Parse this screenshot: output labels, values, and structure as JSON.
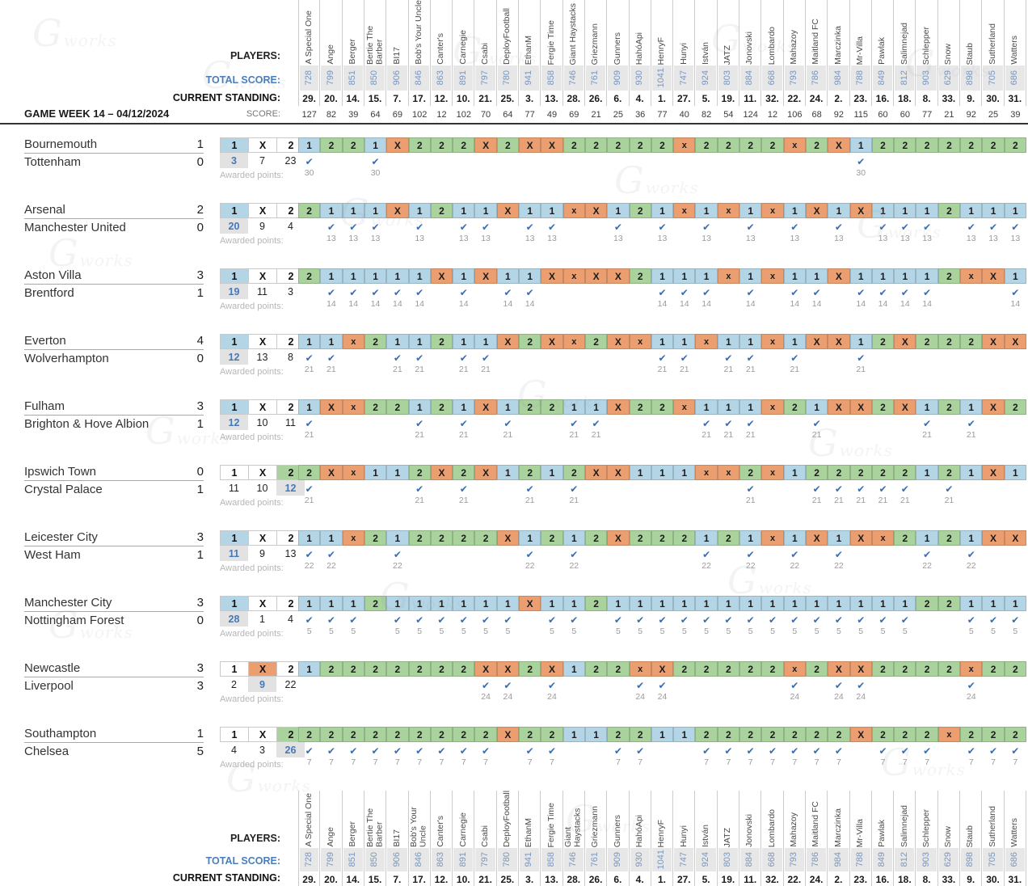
{
  "header": {
    "players_label": "PLAYERS:",
    "total_score_label": "TOTAL SCORE:",
    "standing_label": "CURRENT STANDING:",
    "gameweek_label": "GAME WEEK 14 – 04/12/2024",
    "score_label": "SCORE:",
    "awarded_label": "Awarded points:",
    "odds_header": [
      "1",
      "X",
      "2"
    ]
  },
  "icons": {
    "correct_check": "✔"
  },
  "watermark": {
    "initial": "G",
    "text": "works"
  },
  "colors": {
    "home_win": "#b3d5e5",
    "draw": "#eb9f70",
    "away_win": "#a9d29d",
    "win_value_text": "#4678b8",
    "check": "#3a6cb0"
  },
  "players": [
    {
      "name": "A Special One",
      "total": "728",
      "standing": "29.",
      "week_score": "127"
    },
    {
      "name": "Ange",
      "total": "799",
      "standing": "20.",
      "week_score": "82"
    },
    {
      "name": "Berger",
      "total": "851",
      "standing": "14.",
      "week_score": "39"
    },
    {
      "name": "Bertie The Barber",
      "total": "850",
      "standing": "15.",
      "week_score": "64"
    },
    {
      "name": "BI17",
      "total": "906",
      "standing": "7.",
      "week_score": "69"
    },
    {
      "name": "Bob's Your Uncle",
      "total": "846",
      "standing": "17.",
      "week_score": "102"
    },
    {
      "name": "Canter's",
      "total": "863",
      "standing": "12.",
      "week_score": "12"
    },
    {
      "name": "Carnegie",
      "total": "891",
      "standing": "10.",
      "week_score": "102"
    },
    {
      "name": "Csabi",
      "total": "797",
      "standing": "21.",
      "week_score": "70"
    },
    {
      "name": "DeployFootball",
      "total": "780",
      "standing": "25.",
      "week_score": "64"
    },
    {
      "name": "EthanM",
      "total": "941",
      "standing": "3.",
      "week_score": "77"
    },
    {
      "name": "Fergie Time",
      "total": "858",
      "standing": "13.",
      "week_score": "49"
    },
    {
      "name": "Giant Haystacks",
      "total": "746",
      "standing": "28.",
      "week_score": "69"
    },
    {
      "name": "Griezmann",
      "total": "761",
      "standing": "26.",
      "week_score": "21"
    },
    {
      "name": "Gunners",
      "total": "909",
      "standing": "6.",
      "week_score": "25"
    },
    {
      "name": "HahóApi",
      "total": "930",
      "standing": "4.",
      "week_score": "36"
    },
    {
      "name": "HenryF",
      "total": "1041",
      "standing": "1.",
      "week_score": "77"
    },
    {
      "name": "Hunyi",
      "total": "747",
      "standing": "27.",
      "week_score": "40"
    },
    {
      "name": "István",
      "total": "924",
      "standing": "5.",
      "week_score": "82"
    },
    {
      "name": "JATZ",
      "total": "803",
      "standing": "19.",
      "week_score": "54"
    },
    {
      "name": "Jonovski",
      "total": "884",
      "standing": "11.",
      "week_score": "124"
    },
    {
      "name": "Lombardo",
      "total": "668",
      "standing": "32.",
      "week_score": "12"
    },
    {
      "name": "Mahazoy",
      "total": "793",
      "standing": "22.",
      "week_score": "106"
    },
    {
      "name": "Maitland FC",
      "total": "786",
      "standing": "24.",
      "week_score": "68"
    },
    {
      "name": "Marczinka",
      "total": "984",
      "standing": "2.",
      "week_score": "92"
    },
    {
      "name": "Mr-Villa",
      "total": "788",
      "standing": "23.",
      "week_score": "115"
    },
    {
      "name": "Pawlak",
      "total": "849",
      "standing": "16.",
      "week_score": "60"
    },
    {
      "name": "Salimnejad",
      "total": "812",
      "standing": "18.",
      "week_score": "60"
    },
    {
      "name": "Schlepper",
      "total": "903",
      "standing": "8.",
      "week_score": "77"
    },
    {
      "name": "Snow",
      "total": "629",
      "standing": "33.",
      "week_score": "21"
    },
    {
      "name": "Staub",
      "total": "898",
      "standing": "9.",
      "week_score": "92"
    },
    {
      "name": "Sutherland",
      "total": "705",
      "standing": "30.",
      "week_score": "25"
    },
    {
      "name": "Watters",
      "total": "686",
      "standing": "31.",
      "week_score": "39"
    }
  ],
  "matches": [
    {
      "home": "Bournemouth",
      "home_score": "1",
      "away": "Tottenham",
      "away_score": "0",
      "result": "1",
      "votes": [
        "3",
        "7",
        "23"
      ],
      "awarded_points": "30",
      "predictions": [
        "1",
        "2",
        "2",
        "1",
        "X",
        "2",
        "2",
        "2",
        "X",
        "2",
        "X",
        "X",
        "2",
        "2",
        "2",
        "2",
        "2",
        "x",
        "2",
        "2",
        "2",
        "2",
        "x",
        "2",
        "X",
        "1",
        "2",
        "2",
        "2",
        "2",
        "2",
        "2",
        "2"
      ]
    },
    {
      "home": "Arsenal",
      "home_score": "2",
      "away": "Manchester United",
      "away_score": "0",
      "result": "1",
      "votes": [
        "20",
        "9",
        "4"
      ],
      "awarded_points": "13",
      "predictions": [
        "2",
        "1",
        "1",
        "1",
        "X",
        "1",
        "2",
        "1",
        "1",
        "X",
        "1",
        "1",
        "x",
        "X",
        "1",
        "2",
        "1",
        "x",
        "1",
        "x",
        "1",
        "x",
        "1",
        "X",
        "1",
        "X",
        "1",
        "1",
        "1",
        "2",
        "1",
        "1",
        "1"
      ]
    },
    {
      "home": "Aston Villa",
      "home_score": "3",
      "away": "Brentford",
      "away_score": "1",
      "result": "1",
      "votes": [
        "19",
        "11",
        "3"
      ],
      "awarded_points": "14",
      "predictions": [
        "2",
        "1",
        "1",
        "1",
        "1",
        "1",
        "X",
        "1",
        "X",
        "1",
        "1",
        "X",
        "x",
        "X",
        "X",
        "2",
        "1",
        "1",
        "1",
        "x",
        "1",
        "x",
        "1",
        "1",
        "X",
        "1",
        "1",
        "1",
        "1",
        "2",
        "x",
        "X",
        "1"
      ]
    },
    {
      "home": "Everton",
      "home_score": "4",
      "away": "Wolverhampton",
      "away_score": "0",
      "result": "1",
      "votes": [
        "12",
        "13",
        "8"
      ],
      "awarded_points": "21",
      "predictions": [
        "1",
        "1",
        "x",
        "2",
        "1",
        "1",
        "2",
        "1",
        "1",
        "X",
        "2",
        "X",
        "x",
        "2",
        "X",
        "x",
        "1",
        "1",
        "x",
        "1",
        "1",
        "x",
        "1",
        "X",
        "X",
        "1",
        "2",
        "X",
        "2",
        "2",
        "2",
        "X",
        "X"
      ]
    },
    {
      "home": "Fulham",
      "home_score": "3",
      "away": "Brighton & Hove Albion",
      "away_score": "1",
      "result": "1",
      "votes": [
        "12",
        "10",
        "11"
      ],
      "awarded_points": "21",
      "predictions": [
        "1",
        "X",
        "x",
        "2",
        "2",
        "1",
        "2",
        "1",
        "X",
        "1",
        "2",
        "2",
        "1",
        "1",
        "X",
        "2",
        "2",
        "x",
        "1",
        "1",
        "1",
        "x",
        "2",
        "1",
        "X",
        "X",
        "2",
        "X",
        "1",
        "2",
        "1",
        "X",
        "2"
      ]
    },
    {
      "home": "Ipswich Town",
      "home_score": "0",
      "away": "Crystal Palace",
      "away_score": "1",
      "result": "2",
      "votes": [
        "11",
        "10",
        "12"
      ],
      "awarded_points": "21",
      "predictions": [
        "2",
        "X",
        "x",
        "1",
        "1",
        "2",
        "X",
        "2",
        "X",
        "1",
        "2",
        "1",
        "2",
        "X",
        "X",
        "1",
        "1",
        "1",
        "x",
        "x",
        "2",
        "x",
        "1",
        "2",
        "2",
        "2",
        "2",
        "2",
        "1",
        "2",
        "1",
        "X",
        "1"
      ]
    },
    {
      "home": "Leicester City",
      "home_score": "3",
      "away": "West Ham",
      "away_score": "1",
      "result": "1",
      "votes": [
        "11",
        "9",
        "13"
      ],
      "awarded_points": "22",
      "predictions": [
        "1",
        "1",
        "x",
        "2",
        "1",
        "2",
        "2",
        "2",
        "2",
        "X",
        "1",
        "2",
        "1",
        "2",
        "X",
        "2",
        "2",
        "2",
        "1",
        "2",
        "1",
        "x",
        "1",
        "X",
        "1",
        "X",
        "x",
        "2",
        "1",
        "2",
        "1",
        "X",
        "X"
      ]
    },
    {
      "home": "Manchester City",
      "home_score": "3",
      "away": "Nottingham Forest",
      "away_score": "0",
      "result": "1",
      "votes": [
        "28",
        "1",
        "4"
      ],
      "awarded_points": "5",
      "predictions": [
        "1",
        "1",
        "1",
        "2",
        "1",
        "1",
        "1",
        "1",
        "1",
        "1",
        "X",
        "1",
        "1",
        "2",
        "1",
        "1",
        "1",
        "1",
        "1",
        "1",
        "1",
        "1",
        "1",
        "1",
        "1",
        "1",
        "1",
        "1",
        "2",
        "2",
        "1",
        "1",
        "1"
      ]
    },
    {
      "home": "Newcastle",
      "home_score": "3",
      "away": "Liverpool",
      "away_score": "3",
      "result": "X",
      "votes": [
        "2",
        "9",
        "22"
      ],
      "awarded_points": "24",
      "predictions": [
        "1",
        "2",
        "2",
        "2",
        "2",
        "2",
        "2",
        "2",
        "X",
        "X",
        "2",
        "X",
        "1",
        "2",
        "2",
        "x",
        "X",
        "2",
        "2",
        "2",
        "2",
        "2",
        "x",
        "2",
        "X",
        "X",
        "2",
        "2",
        "2",
        "2",
        "x",
        "2",
        "2"
      ]
    },
    {
      "home": "Southampton",
      "home_score": "1",
      "away": "Chelsea",
      "away_score": "5",
      "result": "2",
      "votes": [
        "4",
        "3",
        "26"
      ],
      "awarded_points": "7",
      "predictions": [
        "2",
        "2",
        "2",
        "2",
        "2",
        "2",
        "2",
        "2",
        "2",
        "X",
        "2",
        "2",
        "1",
        "1",
        "2",
        "2",
        "1",
        "1",
        "2",
        "2",
        "2",
        "2",
        "2",
        "2",
        "2",
        "X",
        "2",
        "2",
        "2",
        "x",
        "2",
        "2",
        "2"
      ]
    }
  ]
}
